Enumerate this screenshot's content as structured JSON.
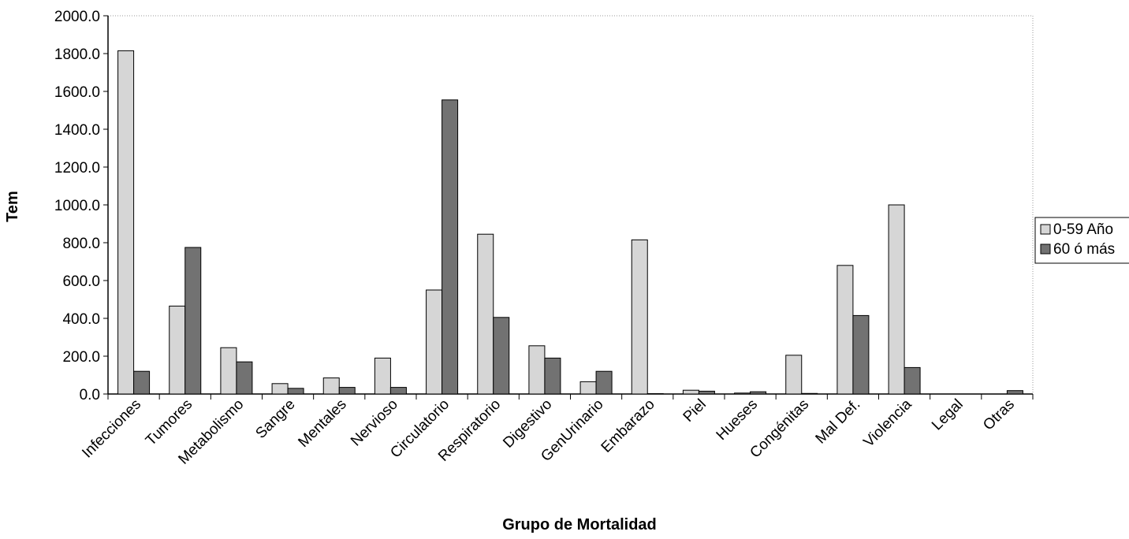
{
  "chart_data": {
    "type": "bar",
    "x_label": "Grupo de Mortalidad",
    "y_label": "Tem",
    "categories": [
      "Infecciones",
      "Tumores",
      "Metabolismo",
      "Sangre",
      "Mentales",
      "Nervioso",
      "Circulatorio",
      "Respiratorio",
      "Digestivo",
      "GenUrinario",
      "Embarazo",
      "Piel",
      "Hueses",
      "Congénitas",
      "Mal Def.",
      "Violencia",
      "Legal",
      "Otras"
    ],
    "series": [
      {
        "name": "0-59 Año",
        "color": "#d6d6d6",
        "values": [
          1815,
          465,
          245,
          55,
          85,
          190,
          550,
          845,
          255,
          65,
          815,
          20,
          5,
          205,
          680,
          1000,
          0,
          0
        ]
      },
      {
        "name": "60 ó más",
        "color": "#727272",
        "values": [
          120,
          775,
          170,
          30,
          35,
          35,
          1555,
          405,
          190,
          120,
          2,
          15,
          12,
          3,
          415,
          140,
          0,
          18
        ]
      }
    ],
    "ylim": [
      0,
      2000
    ],
    "yticks": [
      {
        "value": 0,
        "label": "0.0"
      },
      {
        "value": 200,
        "label": "200.0"
      },
      {
        "value": 400,
        "label": "400.0"
      },
      {
        "value": 600,
        "label": "600.0"
      },
      {
        "value": 800,
        "label": "800.0"
      },
      {
        "value": 1000,
        "label": "1000.0"
      },
      {
        "value": 1200,
        "label": "1200.0"
      },
      {
        "value": 1400,
        "label": "1400.0"
      },
      {
        "value": 1600,
        "label": "1600.0"
      },
      {
        "value": 1800,
        "label": "1800.0"
      },
      {
        "value": 2000,
        "label": "2000.0"
      }
    ],
    "grid": false,
    "legend": "right"
  }
}
